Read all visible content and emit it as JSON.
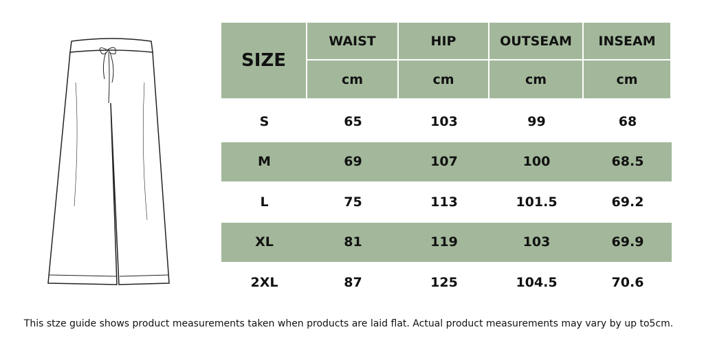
{
  "size_chart": {
    "header": {
      "size": "SIZE",
      "columns": [
        "WAIST",
        "HIP",
        "OUTSEAM",
        "INSEAM"
      ],
      "units": [
        "cm",
        "cm",
        "cm",
        "cm"
      ]
    },
    "rows": [
      [
        "S",
        65,
        103,
        99,
        68
      ],
      [
        "M",
        69,
        107,
        100,
        68.5
      ],
      [
        "L",
        75,
        113,
        101.5,
        69.2
      ],
      [
        "XL",
        81,
        119,
        103,
        69.9
      ],
      [
        "2XL",
        87,
        125,
        104.5,
        70.6
      ]
    ],
    "footnote": "This stze guide shows product measurements taken when products are laid flat. Actual product measurements may vary by up to5cm."
  }
}
